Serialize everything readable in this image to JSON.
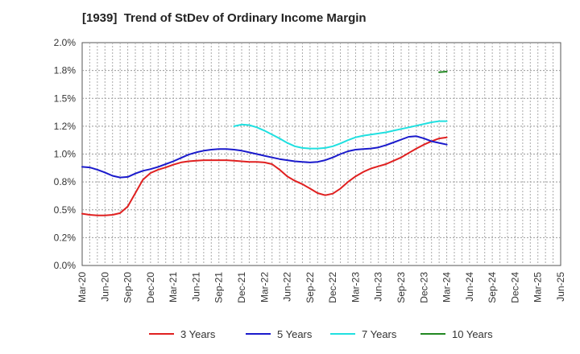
{
  "chart_data": {
    "type": "line",
    "title": "[1939]  Trend of StDev of Ordinary Income Margin",
    "xlabel": "",
    "ylabel": "",
    "x_tick_labels": [
      "Mar-20",
      "Jun-20",
      "Sep-20",
      "Dec-20",
      "Mar-21",
      "Jun-21",
      "Sep-21",
      "Dec-21",
      "Mar-22",
      "Jun-22",
      "Sep-22",
      "Dec-22",
      "Mar-23",
      "Jun-23",
      "Sep-23",
      "Dec-23",
      "Mar-24",
      "Jun-24",
      "Sep-24",
      "Dec-24",
      "Mar-25",
      "Jun-25"
    ],
    "y_tick_labels": [
      "0.0%",
      "0.2%",
      "0.5%",
      "0.8%",
      "1.0%",
      "1.2%",
      "1.5%",
      "1.8%",
      "2.0%"
    ],
    "ylim": [
      0,
      2.0
    ],
    "grid": true,
    "legend_position": "bottom",
    "series": [
      {
        "name": "3 Years",
        "color": "#e02020",
        "start_index": 0,
        "values": [
          0.465,
          0.455,
          0.45,
          0.45,
          0.455,
          0.47,
          0.53,
          0.65,
          0.77,
          0.83,
          0.86,
          0.88,
          0.905,
          0.925,
          0.935,
          0.94,
          0.945,
          0.945,
          0.945,
          0.945,
          0.94,
          0.935,
          0.93,
          0.93,
          0.925,
          0.91,
          0.86,
          0.8,
          0.76,
          0.73,
          0.69,
          0.65,
          0.63,
          0.645,
          0.69,
          0.75,
          0.8,
          0.84,
          0.87,
          0.89,
          0.91,
          0.94,
          0.97,
          1.01,
          1.05,
          1.085,
          1.115,
          1.14,
          1.15
        ]
      },
      {
        "name": "5 Years",
        "color": "#1a1acc",
        "start_index": 0,
        "values": [
          0.885,
          0.88,
          0.86,
          0.835,
          0.805,
          0.79,
          0.795,
          0.825,
          0.85,
          0.865,
          0.885,
          0.91,
          0.935,
          0.965,
          0.995,
          1.015,
          1.03,
          1.04,
          1.045,
          1.045,
          1.04,
          1.03,
          1.015,
          1.0,
          0.985,
          0.97,
          0.955,
          0.945,
          0.935,
          0.93,
          0.925,
          0.93,
          0.945,
          0.97,
          1.0,
          1.025,
          1.04,
          1.045,
          1.05,
          1.06,
          1.08,
          1.105,
          1.13,
          1.155,
          1.16,
          1.14,
          1.115,
          1.1,
          1.085
        ]
      },
      {
        "name": "7 Years",
        "color": "#20e0e0",
        "start_index": 20,
        "values": [
          1.25,
          1.265,
          1.26,
          1.24,
          1.21,
          1.175,
          1.14,
          1.1,
          1.07,
          1.055,
          1.05,
          1.05,
          1.055,
          1.07,
          1.095,
          1.125,
          1.15,
          1.165,
          1.175,
          1.185,
          1.195,
          1.21,
          1.225,
          1.24,
          1.255,
          1.27,
          1.285,
          1.295,
          1.295
        ]
      },
      {
        "name": "10 Years",
        "color": "#228822",
        "start_index": 47,
        "values": [
          1.735,
          1.74
        ]
      }
    ]
  }
}
